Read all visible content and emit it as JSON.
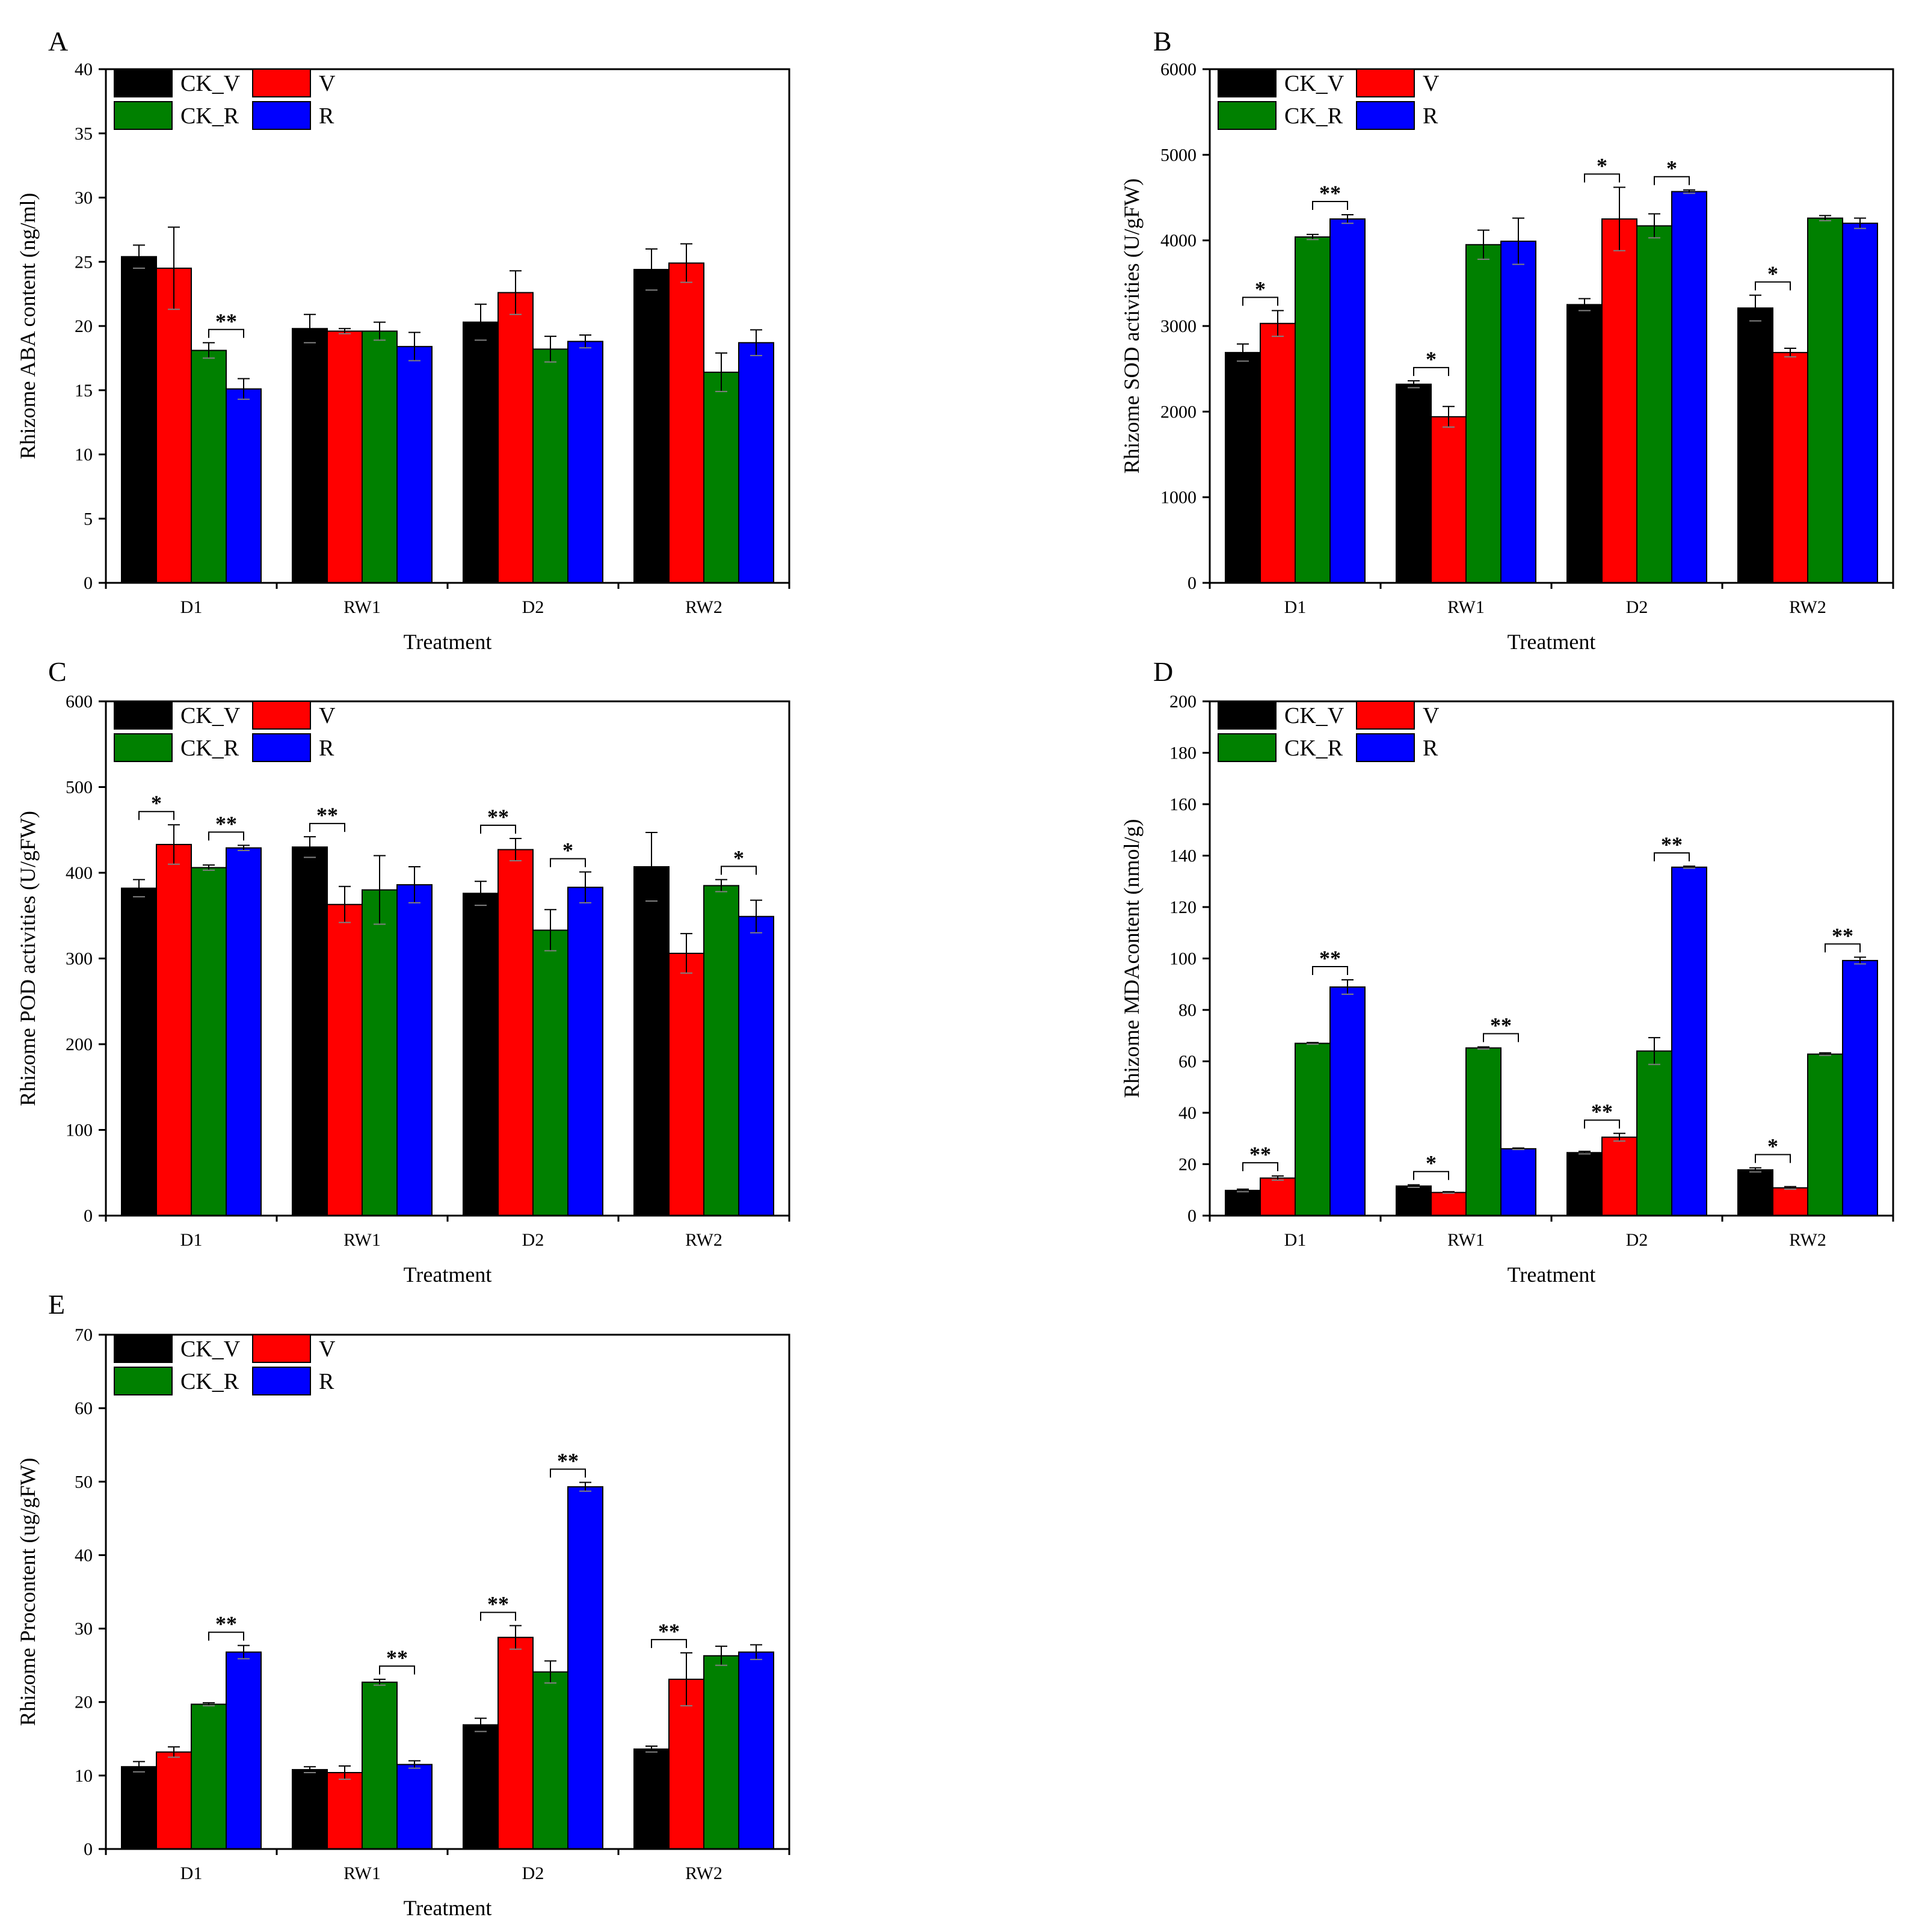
{
  "figure": {
    "legend_labels": [
      "CK_V",
      "V",
      "CK_R",
      "R"
    ],
    "colors": {
      "CK_V": "#000000",
      "V": "#ff0000",
      "CK_R": "#008000",
      "R": "#0000ff",
      "error_bar": "#808080"
    }
  },
  "chart_data": [
    {
      "panel": "A",
      "type": "bar",
      "categories": [
        "D1",
        "RW1",
        "D2",
        "RW2"
      ],
      "xlabel": "Treatment",
      "ylabel": "Rhizome ABA content (ng/ml)",
      "ylim": [
        0,
        40
      ],
      "yticks": [
        0,
        5,
        10,
        15,
        20,
        25,
        30,
        35,
        40
      ],
      "series": [
        {
          "name": "CK_V",
          "values": [
            25.4,
            19.8,
            20.3,
            24.4
          ],
          "errors": [
            0.9,
            1.1,
            1.4,
            1.6
          ]
        },
        {
          "name": "V",
          "values": [
            24.5,
            19.6,
            22.6,
            24.9
          ],
          "errors": [
            3.2,
            0.2,
            1.7,
            1.5
          ]
        },
        {
          "name": "CK_R",
          "values": [
            18.1,
            19.6,
            18.2,
            16.4
          ],
          "errors": [
            0.6,
            0.7,
            1.0,
            1.5
          ]
        },
        {
          "name": "R",
          "values": [
            15.1,
            18.4,
            18.8,
            18.7
          ],
          "errors": [
            0.8,
            1.1,
            0.5,
            1.0
          ]
        }
      ],
      "significance": [
        {
          "category": "D1",
          "pair": [
            "CK_R",
            "R"
          ],
          "label": "**"
        }
      ]
    },
    {
      "panel": "B",
      "type": "bar",
      "categories": [
        "D1",
        "RW1",
        "D2",
        "RW2"
      ],
      "xlabel": "Treatment",
      "ylabel": "Rhizome SOD activities (U/gFW)",
      "ylim": [
        0,
        6000
      ],
      "yticks": [
        0,
        1000,
        2000,
        3000,
        4000,
        5000,
        6000
      ],
      "series": [
        {
          "name": "CK_V",
          "values": [
            2690,
            2320,
            3250,
            3210
          ],
          "errors": [
            100,
            40,
            70,
            150
          ]
        },
        {
          "name": "V",
          "values": [
            3030,
            1940,
            4250,
            2690
          ],
          "errors": [
            150,
            120,
            370,
            50
          ]
        },
        {
          "name": "CK_R",
          "values": [
            4040,
            3950,
            4170,
            4260
          ],
          "errors": [
            30,
            170,
            140,
            30
          ]
        },
        {
          "name": "R",
          "values": [
            4250,
            3990,
            4570,
            4200
          ],
          "errors": [
            50,
            270,
            20,
            60
          ]
        }
      ],
      "significance": [
        {
          "category": "D1",
          "pair": [
            "CK_V",
            "V"
          ],
          "label": "*"
        },
        {
          "category": "D1",
          "pair": [
            "CK_R",
            "R"
          ],
          "label": "**"
        },
        {
          "category": "RW1",
          "pair": [
            "CK_V",
            "V"
          ],
          "label": "*"
        },
        {
          "category": "D2",
          "pair": [
            "CK_V",
            "V"
          ],
          "label": "*"
        },
        {
          "category": "D2",
          "pair": [
            "CK_R",
            "R"
          ],
          "label": "*"
        },
        {
          "category": "RW2",
          "pair": [
            "CK_V",
            "V"
          ],
          "label": "*"
        }
      ]
    },
    {
      "panel": "C",
      "type": "bar",
      "categories": [
        "D1",
        "RW1",
        "D2",
        "RW2"
      ],
      "xlabel": "Treatment",
      "ylabel": "Rhizome POD activities (U/gFW)",
      "ylim": [
        0,
        600
      ],
      "yticks": [
        0,
        100,
        200,
        300,
        400,
        500,
        600
      ],
      "series": [
        {
          "name": "CK_V",
          "values": [
            382,
            430,
            376,
            407
          ],
          "errors": [
            10,
            12,
            14,
            40
          ]
        },
        {
          "name": "V",
          "values": [
            433,
            363,
            427,
            306
          ],
          "errors": [
            23,
            21,
            13,
            23
          ]
        },
        {
          "name": "CK_R",
          "values": [
            406,
            380,
            333,
            385
          ],
          "errors": [
            3,
            40,
            24,
            7
          ]
        },
        {
          "name": "R",
          "values": [
            429,
            386,
            383,
            349
          ],
          "errors": [
            3,
            21,
            18,
            19
          ]
        }
      ],
      "significance": [
        {
          "category": "D1",
          "pair": [
            "CK_V",
            "V"
          ],
          "label": "*"
        },
        {
          "category": "D1",
          "pair": [
            "CK_R",
            "R"
          ],
          "label": "**"
        },
        {
          "category": "RW1",
          "pair": [
            "CK_V",
            "V"
          ],
          "label": "**"
        },
        {
          "category": "D2",
          "pair": [
            "CK_V",
            "V"
          ],
          "label": "**"
        },
        {
          "category": "D2",
          "pair": [
            "CK_R",
            "R"
          ],
          "label": "*"
        },
        {
          "category": "RW2",
          "pair": [
            "CK_R",
            "R"
          ],
          "label": "*"
        }
      ]
    },
    {
      "panel": "D",
      "type": "bar",
      "categories": [
        "D1",
        "RW1",
        "D2",
        "RW2"
      ],
      "xlabel": "Treatment",
      "ylabel": "Rhizome MDAcontent (nmol/g)",
      "ylim": [
        0,
        200
      ],
      "yticks": [
        0,
        20,
        40,
        60,
        80,
        100,
        120,
        140,
        160,
        180,
        200
      ],
      "series": [
        {
          "name": "CK_V",
          "values": [
            9.8,
            11.5,
            24.5,
            17.8
          ],
          "errors": [
            0.5,
            0.5,
            0.5,
            0.8
          ]
        },
        {
          "name": "V",
          "values": [
            14.6,
            9.0,
            30.5,
            10.8
          ],
          "errors": [
            0.8,
            0.3,
            1.5,
            0.5
          ]
        },
        {
          "name": "CK_R",
          "values": [
            67.0,
            65.2,
            64.0,
            62.8
          ],
          "errors": [
            0.3,
            0.4,
            5.2,
            0.5
          ]
        },
        {
          "name": "R",
          "values": [
            88.9,
            26.0,
            135.5,
            99.2
          ],
          "errors": [
            2.8,
            0.3,
            0.4,
            1.3
          ]
        }
      ],
      "significance": [
        {
          "category": "D1",
          "pair": [
            "CK_V",
            "V"
          ],
          "label": "**"
        },
        {
          "category": "D1",
          "pair": [
            "CK_R",
            "R"
          ],
          "label": "**"
        },
        {
          "category": "RW1",
          "pair": [
            "CK_V",
            "V"
          ],
          "label": "*"
        },
        {
          "category": "RW1",
          "pair": [
            "CK_R",
            "R"
          ],
          "label": "**"
        },
        {
          "category": "D2",
          "pair": [
            "CK_V",
            "V"
          ],
          "label": "**"
        },
        {
          "category": "D2",
          "pair": [
            "CK_R",
            "R"
          ],
          "label": "**"
        },
        {
          "category": "RW2",
          "pair": [
            "CK_V",
            "V"
          ],
          "label": "*"
        },
        {
          "category": "RW2",
          "pair": [
            "CK_R",
            "R"
          ],
          "label": "**"
        }
      ]
    },
    {
      "panel": "E",
      "type": "bar",
      "categories": [
        "D1",
        "RW1",
        "D2",
        "RW2"
      ],
      "xlabel": "Treatment",
      "ylabel": "Rhizome Procontent (ug/gFW)",
      "ylim": [
        0,
        70
      ],
      "yticks": [
        0,
        10,
        20,
        30,
        40,
        50,
        60,
        70
      ],
      "series": [
        {
          "name": "CK_V",
          "values": [
            11.2,
            10.8,
            16.9,
            13.6
          ],
          "errors": [
            0.7,
            0.4,
            0.9,
            0.4
          ]
        },
        {
          "name": "V",
          "values": [
            13.2,
            10.4,
            28.8,
            23.1
          ],
          "errors": [
            0.7,
            0.9,
            1.6,
            3.6
          ]
        },
        {
          "name": "CK_R",
          "values": [
            19.7,
            22.7,
            24.1,
            26.3
          ],
          "errors": [
            0.2,
            0.4,
            1.5,
            1.3
          ]
        },
        {
          "name": "R",
          "values": [
            26.8,
            11.5,
            49.3,
            26.8
          ],
          "errors": [
            0.9,
            0.5,
            0.6,
            1.0
          ]
        }
      ],
      "significance": [
        {
          "category": "D1",
          "pair": [
            "CK_R",
            "R"
          ],
          "label": "**"
        },
        {
          "category": "RW1",
          "pair": [
            "CK_R",
            "R"
          ],
          "label": "**"
        },
        {
          "category": "D2",
          "pair": [
            "CK_V",
            "V"
          ],
          "label": "**"
        },
        {
          "category": "D2",
          "pair": [
            "CK_R",
            "R"
          ],
          "label": "**"
        },
        {
          "category": "RW2",
          "pair": [
            "CK_V",
            "V"
          ],
          "label": "**"
        }
      ]
    }
  ]
}
